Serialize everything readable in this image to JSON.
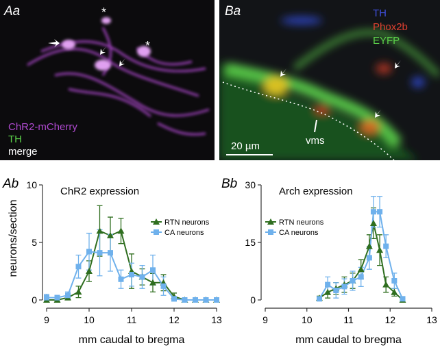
{
  "image_panels": [
    {
      "label": "Aa",
      "annotations": [
        "*",
        "*"
      ],
      "legend": [
        "ChR2-mCherry",
        "TH",
        "merge"
      ]
    },
    {
      "label": "Ba",
      "legend": [
        "TH",
        "Phox2b",
        "EYFP"
      ],
      "scale_bar": "20 µm",
      "annotation": "vms"
    }
  ],
  "chart_data": [
    {
      "type": "line",
      "panel_label": "Ab",
      "title": "ChR2 expression",
      "xlabel": "mm caudal to bregma",
      "ylabel": "neurons/section",
      "xlim": [
        9,
        13
      ],
      "xticks": [
        9,
        10,
        11,
        12,
        13
      ],
      "ylim": [
        0,
        10
      ],
      "yticks": [
        0,
        5,
        10
      ],
      "legend": "upper right",
      "x": [
        9,
        9.25,
        9.5,
        9.75,
        10,
        10.25,
        10.5,
        10.75,
        11,
        11.25,
        11.5,
        11.75,
        12,
        12.25,
        12.5,
        12.75,
        13
      ],
      "series": [
        {
          "name": "RTN neurons",
          "color": "#2f6e1f",
          "marker": "triangle",
          "values": [
            0,
            0,
            0.2,
            0.7,
            2.5,
            6,
            5.6,
            6,
            2.5,
            2,
            1.5,
            1.5,
            0.3,
            0,
            0,
            0,
            0
          ],
          "errors": [
            0.1,
            0.1,
            0.2,
            0.5,
            0.9,
            2.2,
            1.6,
            1.1,
            1.5,
            0.7,
            0.8,
            0.7,
            0.3,
            0.1,
            0,
            0,
            0
          ]
        },
        {
          "name": "CA neurons",
          "color": "#6fb1ec",
          "marker": "square",
          "values": [
            0.2,
            0.2,
            0.4,
            2.9,
            4.2,
            4.1,
            4.1,
            1.8,
            2.2,
            2,
            2.6,
            1.2,
            0.1,
            0,
            0,
            0,
            0
          ],
          "errors": [
            0.3,
            0.2,
            0.3,
            1,
            1.6,
            2,
            1.6,
            0.8,
            1,
            1,
            1.3,
            0.8,
            0.2,
            0.1,
            0,
            0,
            0
          ]
        }
      ]
    },
    {
      "type": "line",
      "panel_label": "Bb",
      "title": "Arch expression",
      "xlabel": "mm caudal to bregma",
      "xlim": [
        9,
        13
      ],
      "xticks": [
        9,
        10,
        11,
        12,
        13
      ],
      "ylim": [
        0,
        30
      ],
      "yticks": [
        0,
        15,
        30
      ],
      "legend": "upper left",
      "x": [
        10.3,
        10.5,
        10.7,
        10.9,
        11.1,
        11.3,
        11.5,
        11.6,
        11.75,
        11.9,
        12.1,
        12.3
      ],
      "series": [
        {
          "name": "RTN neurons",
          "color": "#2f6e1f",
          "marker": "triangle",
          "values": [
            0.5,
            2,
            3,
            4,
            5,
            8,
            14,
            20,
            13,
            4,
            2,
            0
          ],
          "errors": [
            0.5,
            1.5,
            1.5,
            2,
            2,
            2.5,
            3,
            4,
            4,
            2,
            1,
            0.3
          ]
        },
        {
          "name": "CA neurons",
          "color": "#6fb1ec",
          "marker": "square",
          "values": [
            0.3,
            4,
            2.5,
            3.5,
            5,
            6,
            11,
            23,
            23,
            14,
            5,
            0.3
          ],
          "errors": [
            0.5,
            2,
            2,
            2,
            2.5,
            2.5,
            3,
            4,
            4,
            3,
            2,
            0.5
          ]
        }
      ]
    }
  ]
}
